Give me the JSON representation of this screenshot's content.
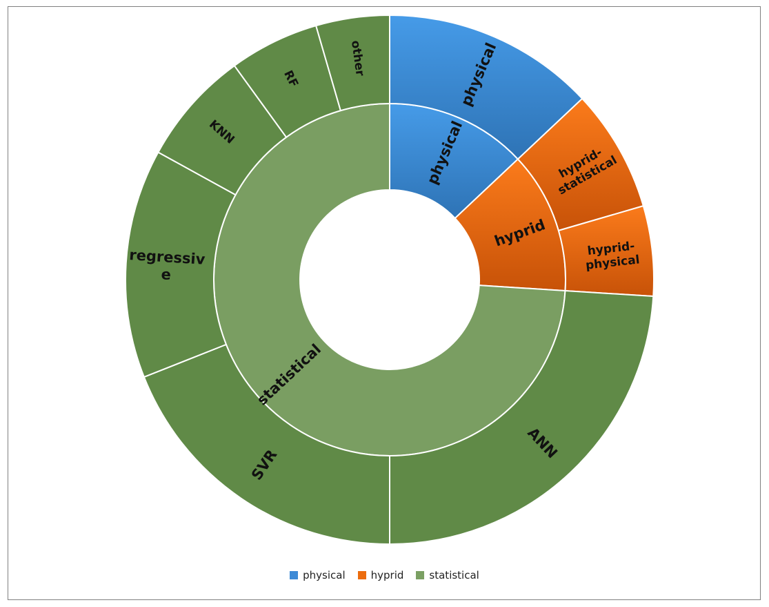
{
  "chart_data": {
    "type": "sunburst",
    "title": "",
    "legend_position": "bottom",
    "categories": [
      {
        "name": "physical",
        "color": "#3d8ad6",
        "value": 13,
        "children": [
          {
            "name": "physical",
            "value": 13
          }
        ]
      },
      {
        "name": "hyprid",
        "color": "#ec6c0e",
        "value": 13,
        "children": [
          {
            "name": "hypridstatistical",
            "label_lines": [
              "hyprid-",
              "statistical"
            ],
            "value": 7.5
          },
          {
            "name": "hyprid-physical",
            "label_lines": [
              "hyprid-",
              "physical"
            ],
            "value": 5.5
          }
        ]
      },
      {
        "name": "statistical",
        "color": "#7ba063",
        "value": 74,
        "children": [
          {
            "name": "ANN",
            "value": 24
          },
          {
            "name": "SVR",
            "value": 19
          },
          {
            "name": "regressive",
            "label_lines": [
              "regressiv",
              "e"
            ],
            "value": 14
          },
          {
            "name": "KNN",
            "value": 7
          },
          {
            "name": "RF",
            "value": 5.5
          },
          {
            "name": "other",
            "value": 4.5
          }
        ]
      }
    ]
  },
  "legend": {
    "items": [
      {
        "label": "physical",
        "color": "#3d8ad6"
      },
      {
        "label": "hyprid",
        "color": "#ec6c0e"
      },
      {
        "label": "statistical",
        "color": "#7ba063"
      }
    ]
  }
}
